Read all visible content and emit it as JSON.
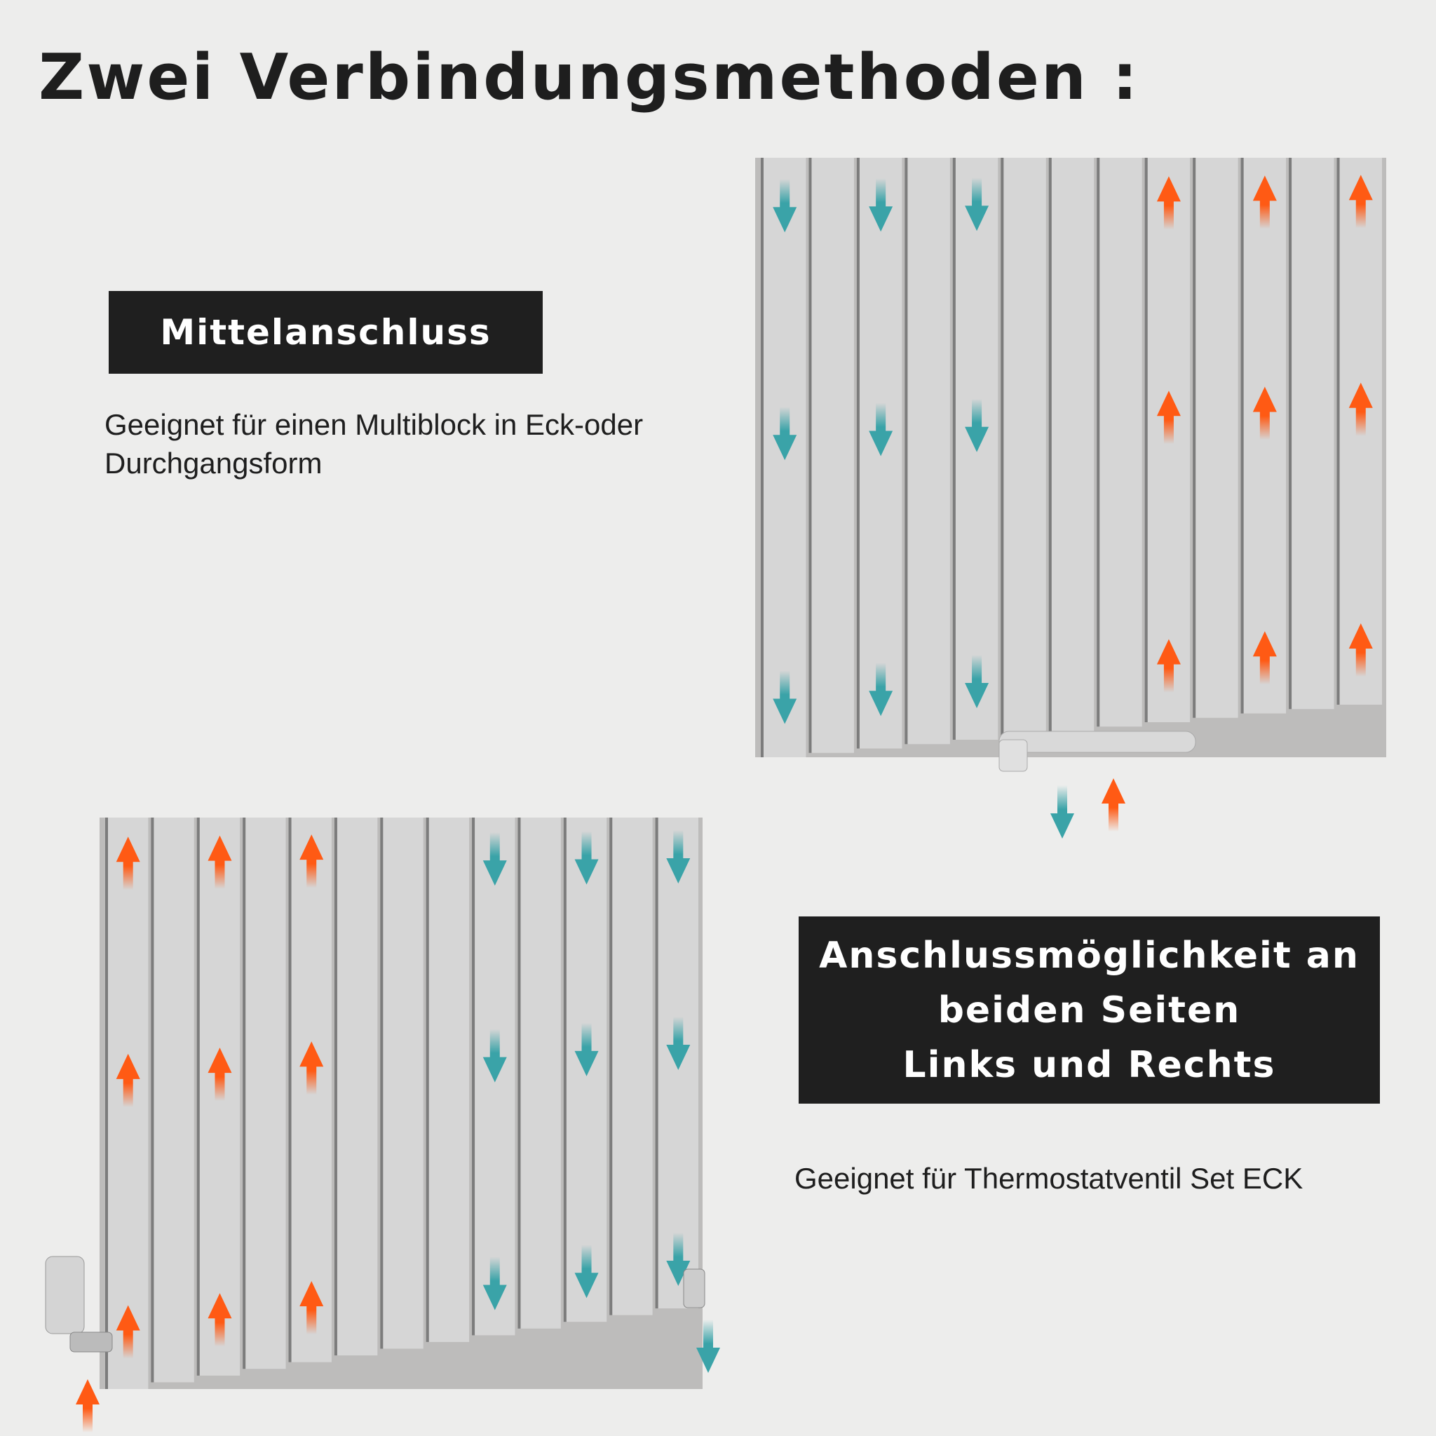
{
  "title": "Zwei Verbindungsmethoden :",
  "sections": [
    {
      "label": "Mittelanschluss",
      "description_lines": [
        "Geeignet für einen Multiblock in Eck-oder",
        "Durchgangsform"
      ]
    },
    {
      "label_lines": [
        "Anschlussmöglichkeit an",
        "beiden Seiten",
        "Links und Rechts"
      ],
      "description": "Geeignet für Thermostatventil Set ECK"
    }
  ],
  "colors": {
    "hot_flow": "#ff5a14",
    "cold_flow": "#3aa3a8",
    "radiator": "#d6d6d6",
    "label_bg": "#1f1f1f"
  },
  "radiators": [
    {
      "name": "middle-connection-radiator",
      "flows": [
        "down",
        "none",
        "down",
        "none",
        "down",
        "none",
        "none",
        "none",
        "up",
        "none",
        "up",
        "none",
        "up"
      ],
      "supply_arrows": [
        "down",
        "up"
      ]
    },
    {
      "name": "side-connection-radiator",
      "flows": [
        "up",
        "none",
        "up",
        "none",
        "up",
        "none",
        "none",
        "none",
        "down",
        "none",
        "down",
        "none",
        "down"
      ],
      "supply_arrows": [
        "up",
        "down"
      ]
    }
  ]
}
